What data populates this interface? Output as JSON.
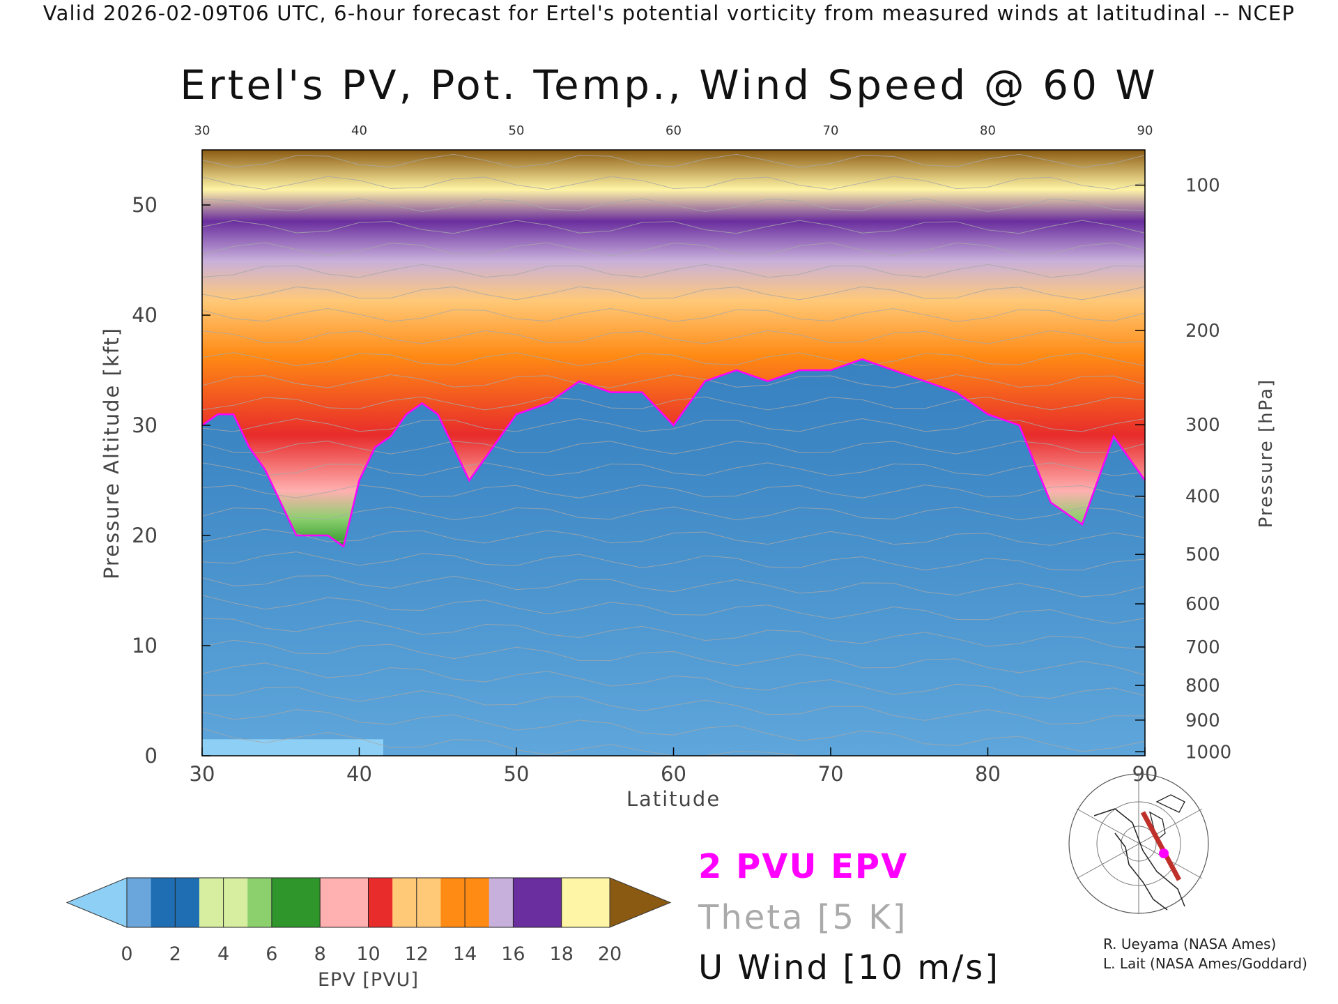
{
  "header": {
    "valid_line": "Valid 2026-02-09T06 UTC, 6-hour forecast for Ertel's potential vorticity from measured winds at latitudinal -- NCEP"
  },
  "chart_data": {
    "type": "heatmap",
    "title": "Ertel's PV, Pot. Temp., Wind Speed @ 60 W",
    "xlabel": "Latitude",
    "ylabel": "Pressure Altitude [kft]",
    "y2label": "Pressure [hPa]",
    "xlim": [
      30,
      90
    ],
    "ylim": [
      0,
      55
    ],
    "x_ticks": [
      30,
      40,
      50,
      60,
      70,
      80,
      90
    ],
    "y_ticks": [
      0,
      10,
      20,
      30,
      40,
      50
    ],
    "top_ticks": [
      30,
      40,
      50,
      60,
      70,
      80,
      90
    ],
    "pressure_ticks": [
      {
        "label": "100",
        "hpa": 100
      },
      {
        "label": "200",
        "hpa": 200
      },
      {
        "label": "300",
        "hpa": 300
      },
      {
        "label": "400",
        "hpa": 400
      },
      {
        "label": "500",
        "hpa": 500
      },
      {
        "label": "600",
        "hpa": 600
      },
      {
        "label": "700",
        "hpa": 700
      },
      {
        "label": "800",
        "hpa": 800
      },
      {
        "label": "900",
        "hpa": 900
      },
      {
        "label": "1000",
        "hpa": 1000
      }
    ],
    "pv_2pvu_height_kft": {
      "lat": [
        30,
        31,
        32,
        33,
        34,
        35,
        36,
        37,
        38,
        39,
        40,
        41,
        42,
        43,
        44,
        45,
        46,
        47,
        48,
        50,
        52,
        54,
        56,
        58,
        60,
        62,
        64,
        66,
        68,
        70,
        72,
        74,
        76,
        78,
        80,
        82,
        84,
        86,
        88,
        90
      ],
      "kft": [
        30,
        31,
        31,
        28,
        26,
        23,
        20,
        20,
        20,
        19,
        25,
        28,
        29,
        31,
        32,
        31,
        28,
        25,
        27,
        31,
        32,
        34,
        33,
        33,
        30,
        34,
        35,
        34,
        35,
        35,
        36,
        35,
        34,
        33,
        31,
        30,
        23,
        21,
        29,
        25
      ]
    },
    "colorbar": {
      "label": "EPV [PVU]",
      "ticks": [
        0,
        2,
        4,
        6,
        8,
        10,
        12,
        14,
        16,
        18,
        20
      ],
      "colors": [
        "#6aa6dc",
        "#1f6eb3",
        "#d7eea0",
        "#8cd06e",
        "#2e962b",
        "#ffb0b0",
        "#e82b2b",
        "#ffc978",
        "#ff8a14",
        "#c8b0dc",
        "#6a2e9e",
        "#fff5a6",
        "#8b5a12"
      ],
      "under_color": "#8ecff5",
      "over_color": "#8b5a12"
    }
  },
  "legend": {
    "pvu_label": "2 PVU EPV",
    "theta_label": "Theta [5 K]",
    "uwind_label": "U Wind [10 m/s]",
    "pvu_color": "#ff00ff",
    "theta_color": "#aaaaaa"
  },
  "credits": {
    "line1": "R. Ueyama (NASA Ames)",
    "line2": "L. Lait (NASA Ames/Goddard)"
  }
}
